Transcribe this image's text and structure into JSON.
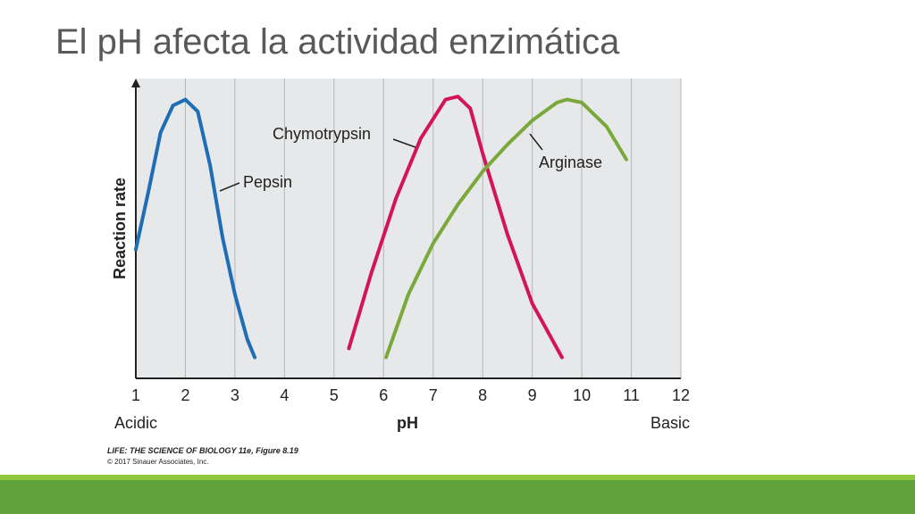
{
  "chart_data": {
    "type": "line",
    "title": "El pH afecta la actividad enzimática",
    "x_label": "pH",
    "x_label_left": "Acidic",
    "x_label_right": "Basic",
    "y_label": "Reaction rate",
    "xlim": [
      1,
      12
    ],
    "xticks": [
      1,
      2,
      3,
      4,
      5,
      6,
      7,
      8,
      9,
      10,
      11,
      12
    ],
    "ylim": [
      0,
      100
    ],
    "grid": true,
    "series": [
      {
        "name": "Pepsin",
        "color": "#1f6db4",
        "x": [
          1,
          1.25,
          1.5,
          1.75,
          2,
          2.25,
          2.5,
          2.75,
          3,
          3.25,
          3.4
        ],
        "values": [
          43,
          62,
          82,
          91,
          93,
          89,
          71,
          47,
          28,
          13,
          7
        ]
      },
      {
        "name": "Chymotrypsin",
        "color": "#d3145a",
        "x": [
          5.3,
          5.75,
          6.25,
          6.75,
          7.25,
          7.5,
          7.75,
          8,
          8.5,
          9,
          9.6
        ],
        "values": [
          10,
          35,
          60,
          80,
          93,
          94,
          90,
          75,
          48,
          25,
          7
        ]
      },
      {
        "name": "Arginase",
        "color": "#7aa83a",
        "x": [
          6.05,
          6.5,
          7,
          7.5,
          8,
          8.5,
          9,
          9.5,
          9.7,
          10,
          10.5,
          10.9
        ],
        "values": [
          7,
          28,
          45,
          58,
          69,
          78,
          86,
          92,
          93,
          92,
          84,
          73
        ]
      }
    ],
    "source": "LIFE: THE SCIENCE OF BIOLOGY 11e, Figure 8.19",
    "copyright": "© 2017 Sinauer Associates, Inc."
  }
}
